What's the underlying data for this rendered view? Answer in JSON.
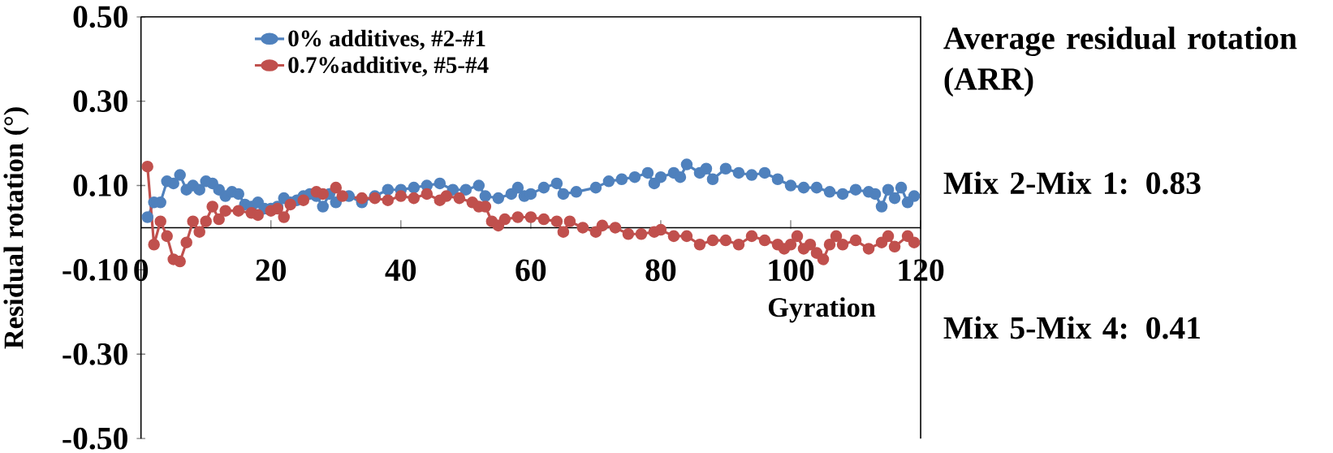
{
  "chart_data": {
    "type": "line",
    "xlabel": "Gyration",
    "ylabel": "Residual rotation (°)",
    "annotations": [
      "Average residual rotation (ARR)",
      "Mix 2-Mix 1: 0.83",
      "Mix 5-Mix 4: 0.41"
    ],
    "xlim": [
      0,
      120
    ],
    "xticks": [
      0,
      20,
      40,
      60,
      80,
      100,
      120
    ],
    "ylim": [
      -0.5,
      0.5
    ],
    "yticks": [
      {
        "value": -0.5,
        "label": "-0.50"
      },
      {
        "value": -0.3,
        "label": "-0.30"
      },
      {
        "value": -0.1,
        "label": "-0.10"
      },
      {
        "value": 0.1,
        "label": "0.10"
      },
      {
        "value": 0.3,
        "label": "0.30"
      },
      {
        "value": 0.5,
        "label": "0.50"
      }
    ],
    "legend": "top",
    "marker": "circle",
    "line_style": "solid",
    "grid": false,
    "series": [
      {
        "name": "0% additives, #2-#1",
        "color": "#4f81bd",
        "x": [
          1,
          2,
          3,
          4,
          5,
          6,
          7,
          8,
          9,
          10,
          11,
          12,
          13,
          14,
          15,
          16,
          17,
          18,
          19,
          20,
          21,
          22,
          23,
          24,
          25,
          26,
          27,
          28,
          29,
          30,
          32,
          34,
          36,
          38,
          40,
          42,
          44,
          46,
          48,
          50,
          52,
          53,
          55,
          57,
          58,
          59,
          60,
          62,
          64,
          65,
          67,
          70,
          72,
          74,
          76,
          78,
          79,
          80,
          82,
          83,
          84,
          86,
          87,
          88,
          90,
          92,
          94,
          96,
          98,
          100,
          102,
          104,
          106,
          108,
          110,
          112,
          113,
          114,
          115,
          116,
          117,
          118,
          119
        ],
        "values": [
          0.025,
          0.06,
          0.06,
          0.11,
          0.105,
          0.125,
          0.09,
          0.1,
          0.09,
          0.11,
          0.105,
          0.09,
          0.075,
          0.085,
          0.08,
          0.055,
          0.05,
          0.06,
          0.045,
          0.045,
          0.05,
          0.07,
          0.06,
          0.065,
          0.075,
          0.08,
          0.075,
          0.05,
          0.08,
          0.06,
          0.075,
          0.06,
          0.075,
          0.09,
          0.09,
          0.095,
          0.1,
          0.105,
          0.09,
          0.09,
          0.1,
          0.075,
          0.07,
          0.08,
          0.095,
          0.075,
          0.08,
          0.095,
          0.105,
          0.08,
          0.085,
          0.095,
          0.11,
          0.115,
          0.12,
          0.13,
          0.105,
          0.12,
          0.13,
          0.12,
          0.15,
          0.13,
          0.14,
          0.115,
          0.14,
          0.13,
          0.125,
          0.13,
          0.115,
          0.1,
          0.095,
          0.095,
          0.085,
          0.08,
          0.09,
          0.085,
          0.08,
          0.05,
          0.09,
          0.07,
          0.095,
          0.06,
          0.075
        ]
      },
      {
        "name": "0.7%additive, #5-#4",
        "color": "#c0504d",
        "x": [
          1,
          2,
          3,
          4,
          5,
          6,
          7,
          8,
          9,
          10,
          11,
          12,
          13,
          15,
          17,
          18,
          20,
          21,
          22,
          23,
          25,
          27,
          28,
          30,
          31,
          34,
          36,
          38,
          40,
          42,
          44,
          46,
          47,
          49,
          51,
          52,
          53,
          54,
          55,
          56,
          58,
          60,
          62,
          64,
          65,
          66,
          68,
          70,
          71,
          73,
          75,
          77,
          79,
          80,
          82,
          84,
          86,
          88,
          90,
          92,
          94,
          96,
          98,
          99,
          100,
          101,
          102,
          103,
          104,
          105,
          106,
          107,
          108,
          110,
          112,
          114,
          115,
          116,
          118,
          119
        ],
        "values": [
          0.145,
          -0.04,
          0.015,
          -0.02,
          -0.075,
          -0.08,
          -0.035,
          0.015,
          -0.01,
          0.015,
          0.05,
          0.02,
          0.04,
          0.04,
          0.035,
          0.03,
          0.04,
          0.045,
          0.025,
          0.055,
          0.065,
          0.085,
          0.08,
          0.095,
          0.075,
          0.07,
          0.07,
          0.065,
          0.075,
          0.07,
          0.08,
          0.065,
          0.075,
          0.07,
          0.06,
          0.05,
          0.05,
          0.015,
          0.005,
          0.02,
          0.025,
          0.025,
          0.02,
          0.015,
          -0.01,
          0.015,
          0.0,
          -0.01,
          0.005,
          0.0,
          -0.015,
          -0.015,
          -0.01,
          -0.005,
          -0.02,
          -0.02,
          -0.04,
          -0.03,
          -0.03,
          -0.04,
          -0.02,
          -0.03,
          -0.04,
          -0.05,
          -0.04,
          -0.02,
          -0.05,
          -0.04,
          -0.06,
          -0.075,
          -0.04,
          -0.02,
          -0.04,
          -0.03,
          -0.05,
          -0.035,
          -0.02,
          -0.045,
          -0.02,
          -0.035
        ]
      }
    ]
  }
}
